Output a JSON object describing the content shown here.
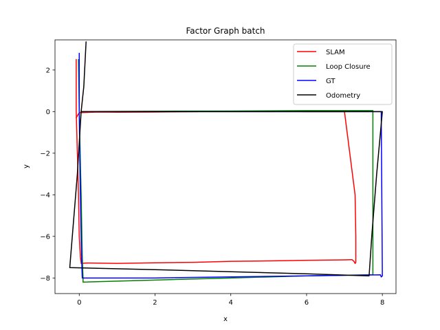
{
  "chart_data": {
    "type": "line",
    "title": "Factor Graph batch",
    "xlabel": "x",
    "ylabel": "y",
    "xlim": [
      -0.64,
      8.36
    ],
    "ylim": [
      -8.75,
      3.45
    ],
    "xticks": [
      0,
      2,
      4,
      6,
      8
    ],
    "yticks": [
      2,
      0,
      -2,
      -4,
      -6,
      -8
    ],
    "tick_labels": {
      "x": [
        "0",
        "2",
        "4",
        "6",
        "8"
      ],
      "y": [
        "2",
        "0",
        "−2",
        "−4",
        "−6",
        "−8"
      ]
    },
    "grid": false,
    "legend_position": "top-right",
    "series": [
      {
        "name": "SLAM",
        "color": "#ff0000",
        "x": [
          -0.08,
          -0.08,
          -0.05,
          -0.02,
          0.0,
          0.03,
          0.05,
          0.05,
          0.2,
          1.0,
          2.0,
          3.0,
          4.0,
          5.0,
          6.0,
          7.0,
          7.2,
          7.25,
          7.28,
          7.3,
          7.3,
          7.28,
          7.0,
          6.0,
          5.0,
          4.0,
          3.0,
          2.0,
          1.0,
          0.5,
          0.0,
          -0.08
        ],
        "y": [
          2.5,
          0.0,
          -2.0,
          -4.0,
          -6.0,
          -7.0,
          -7.25,
          -7.3,
          -7.28,
          -7.3,
          -7.27,
          -7.25,
          -7.2,
          -7.18,
          -7.15,
          -7.13,
          -7.12,
          -7.2,
          -7.3,
          -7.25,
          -6.0,
          -4.0,
          0.0,
          0.0,
          0.02,
          0.02,
          0.0,
          -0.02,
          -0.03,
          -0.02,
          -0.05,
          -0.3
        ]
      },
      {
        "name": "Loop Closure",
        "color": "#008000",
        "x": [
          -0.02,
          0.0,
          0.05,
          0.08,
          0.1,
          0.1,
          2.0,
          4.0,
          6.0,
          7.6,
          7.75,
          7.75,
          6.0,
          4.0,
          2.0,
          0.05
        ],
        "y": [
          2.5,
          0.0,
          -4.0,
          -7.0,
          -8.0,
          -8.2,
          -8.1,
          -8.0,
          -7.9,
          -7.85,
          -7.85,
          0.05,
          0.05,
          0.03,
          0.02,
          0.0
        ]
      },
      {
        "name": "GT",
        "color": "#0000ff",
        "x": [
          0.0,
          0.0,
          0.02,
          0.05,
          0.07,
          0.08,
          2.0,
          4.0,
          6.0,
          7.95,
          7.97,
          8.0,
          7.97,
          6.0,
          4.0,
          2.0,
          0.05
        ],
        "y": [
          2.8,
          0.0,
          -3.0,
          -6.0,
          -7.5,
          -8.0,
          -8.0,
          -7.95,
          -7.9,
          -7.85,
          -7.95,
          -7.9,
          0.0,
          0.0,
          0.0,
          0.0,
          0.0
        ]
      },
      {
        "name": "Odometry",
        "color": "#000000",
        "x": [
          0.18,
          0.12,
          0.05,
          -0.05,
          -0.25,
          2.0,
          4.0,
          6.0,
          7.65,
          7.72,
          7.85,
          8.0,
          8.0,
          6.0,
          4.0,
          2.0,
          0.05
        ],
        "y": [
          3.35,
          1.2,
          0.0,
          -3.0,
          -7.5,
          -7.6,
          -7.7,
          -7.8,
          -7.9,
          -6.0,
          -3.0,
          0.0,
          0.0,
          0.0,
          0.0,
          0.0,
          0.0
        ]
      }
    ]
  }
}
